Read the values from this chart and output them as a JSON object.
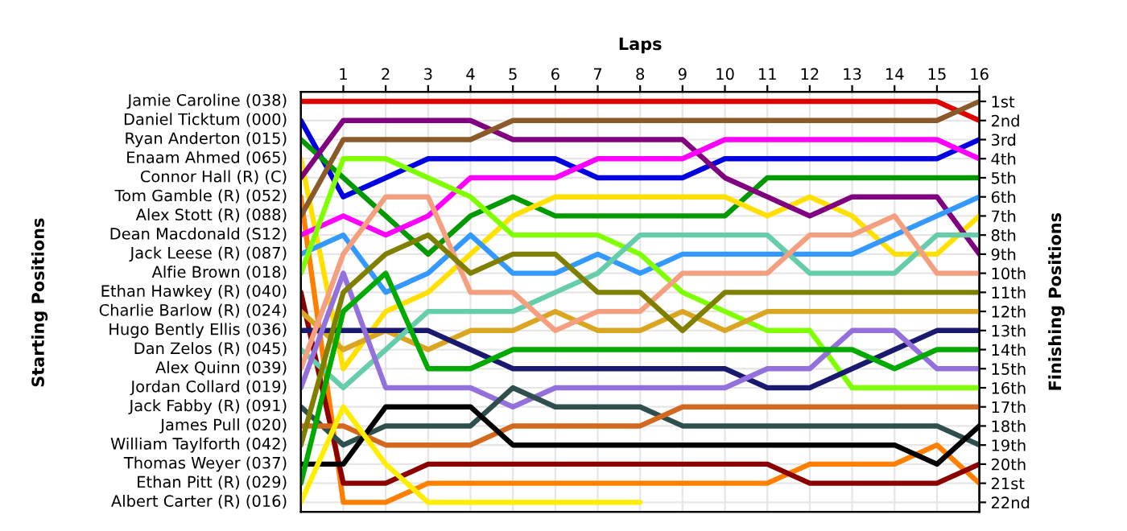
{
  "chart_data": {
    "type": "line",
    "xlabel": "Laps",
    "annotations": [
      "Starting Positions"
    ],
    "y2label": "Finishing Positions",
    "x": [
      0,
      1,
      2,
      3,
      4,
      5,
      6,
      7,
      8,
      9,
      10,
      11,
      12,
      13,
      14,
      15,
      16
    ],
    "xlim": [
      0,
      16
    ],
    "xticks": [
      1,
      2,
      3,
      4,
      5,
      6,
      7,
      8,
      9,
      10,
      11,
      12,
      13,
      14,
      15,
      16
    ],
    "y2lim": [
      22.5,
      0.5
    ],
    "y2ticks": [
      {
        "value": 1,
        "label": "1st"
      },
      {
        "value": 2,
        "label": "2nd"
      },
      {
        "value": 3,
        "label": "3rd"
      },
      {
        "value": 4,
        "label": "4th"
      },
      {
        "value": 5,
        "label": "5th"
      },
      {
        "value": 6,
        "label": "6th"
      },
      {
        "value": 7,
        "label": "7th"
      },
      {
        "value": 8,
        "label": "8th"
      },
      {
        "value": 9,
        "label": "9th"
      },
      {
        "value": 10,
        "label": "10th"
      },
      {
        "value": 11,
        "label": "11th"
      },
      {
        "value": 12,
        "label": "12th"
      },
      {
        "value": 13,
        "label": "13th"
      },
      {
        "value": 14,
        "label": "14th"
      },
      {
        "value": 15,
        "label": "15th"
      },
      {
        "value": 16,
        "label": "16th"
      },
      {
        "value": 17,
        "label": "17th"
      },
      {
        "value": 18,
        "label": "18th"
      },
      {
        "value": 19,
        "label": "19th"
      },
      {
        "value": 20,
        "label": "20th"
      },
      {
        "value": 21,
        "label": "21st"
      },
      {
        "value": 22,
        "label": "22nd"
      }
    ],
    "grid": true,
    "line_style": "solid",
    "series": [
      {
        "name": "Jamie Caroline (038)",
        "axis": "y2",
        "color": "#e00000",
        "values": [
          1,
          1,
          1,
          1,
          1,
          1,
          1,
          1,
          1,
          1,
          1,
          1,
          1,
          1,
          1,
          1,
          2
        ]
      },
      {
        "name": "Daniel Ticktum (000)",
        "axis": "y2",
        "color": "#0000e0",
        "values": [
          2,
          6,
          5,
          4,
          4,
          4,
          4,
          5,
          5,
          5,
          4,
          4,
          4,
          4,
          4,
          4,
          3
        ]
      },
      {
        "name": "Ryan Anderton (015)",
        "axis": "y2",
        "color": "#009900",
        "values": [
          3,
          5,
          7,
          9,
          7,
          6,
          7,
          7,
          7,
          7,
          7,
          5,
          5,
          5,
          5,
          5,
          5
        ]
      },
      {
        "name": "Enaam Ahmed (065)",
        "axis": "y2",
        "color": "#ffe000",
        "values": [
          4,
          15,
          12,
          11,
          9,
          7,
          6,
          6,
          6,
          6,
          6,
          7,
          6,
          7,
          9,
          9,
          7
        ]
      },
      {
        "name": "Connor Hall (R) (C)",
        "axis": "y2",
        "color": "#800080",
        "values": [
          5,
          2,
          2,
          2,
          2,
          3,
          3,
          3,
          3,
          3,
          5,
          6,
          7,
          6,
          6,
          6,
          9
        ]
      },
      {
        "name": "Tom Gamble (R) (052)",
        "axis": "y2",
        "color": "#ff8000",
        "values": [
          6,
          22,
          22,
          21,
          21,
          21,
          21,
          21,
          21,
          21,
          21,
          21,
          20,
          20,
          20,
          19,
          21
        ]
      },
      {
        "name": "Alex Stott (R) (088)",
        "axis": "y2",
        "color": "#8b5a2b",
        "values": [
          7,
          3,
          3,
          3,
          3,
          2,
          2,
          2,
          2,
          2,
          2,
          2,
          2,
          2,
          2,
          2,
          1
        ]
      },
      {
        "name": "Dean Macdonald (S12)",
        "axis": "y2",
        "color": "#ff00ff",
        "values": [
          8,
          7,
          8,
          7,
          5,
          5,
          5,
          4,
          4,
          4,
          3,
          3,
          3,
          3,
          3,
          3,
          4
        ]
      },
      {
        "name": "Jack Leese (R) (087)",
        "axis": "y2",
        "color": "#3399ff",
        "values": [
          9,
          8,
          11,
          10,
          8,
          10,
          10,
          9,
          10,
          9,
          9,
          9,
          9,
          9,
          8,
          7,
          6
        ]
      },
      {
        "name": "Alfie Brown (018)",
        "axis": "y2",
        "color": "#80ff00",
        "values": [
          10,
          4,
          4,
          5,
          6,
          8,
          8,
          8,
          9,
          11,
          12,
          13,
          13,
          16,
          16,
          16,
          16
        ]
      },
      {
        "name": "Ethan Hawkey (R) (040)",
        "axis": "y2",
        "color": "#8b0000",
        "values": [
          11,
          21,
          21,
          20,
          20,
          20,
          20,
          20,
          20,
          20,
          20,
          20,
          21,
          21,
          21,
          21,
          20
        ]
      },
      {
        "name": "Charlie Barlow (R) (024)",
        "axis": "y2",
        "color": "#daa520",
        "values": [
          12,
          14,
          13,
          14,
          13,
          13,
          12,
          13,
          13,
          12,
          13,
          12,
          12,
          12,
          12,
          12,
          12
        ]
      },
      {
        "name": "Hugo Bently Ellis (036)",
        "axis": "y2",
        "color": "#191970",
        "values": [
          13,
          13,
          13,
          13,
          14,
          15,
          15,
          15,
          15,
          15,
          15,
          16,
          16,
          15,
          14,
          13,
          13
        ]
      },
      {
        "name": "Dan Zelos (R) (045)",
        "axis": "y2",
        "color": "#66cdaa",
        "values": [
          14,
          16,
          14,
          12,
          12,
          12,
          11,
          10,
          8,
          8,
          8,
          8,
          10,
          10,
          10,
          8,
          8
        ]
      },
      {
        "name": "Alex Quinn (039)",
        "axis": "y2",
        "color": "#f4a080",
        "values": [
          15,
          9,
          6,
          6,
          11,
          11,
          13,
          12,
          12,
          10,
          10,
          10,
          8,
          8,
          7,
          10,
          10
        ]
      },
      {
        "name": "Jordan Collard (019)",
        "axis": "y2",
        "color": "#9370db",
        "values": [
          16,
          10,
          16,
          16,
          16,
          17,
          16,
          16,
          16,
          16,
          16,
          15,
          15,
          13,
          13,
          15,
          15
        ]
      },
      {
        "name": "Jack Fabby (R) (091)",
        "axis": "y2",
        "color": "#2f4f4f",
        "values": [
          17,
          19,
          18,
          18,
          18,
          16,
          17,
          17,
          17,
          18,
          18,
          18,
          18,
          18,
          18,
          18,
          19
        ]
      },
      {
        "name": "James Pull (020)",
        "axis": "y2",
        "color": "#d2691e",
        "values": [
          18,
          18,
          19,
          19,
          19,
          18,
          18,
          18,
          18,
          17,
          17,
          17,
          17,
          17,
          17,
          17,
          17
        ]
      },
      {
        "name": "William Taylforth (042)",
        "axis": "y2",
        "color": "#808000",
        "values": [
          19,
          11,
          9,
          8,
          10,
          9,
          9,
          11,
          11,
          13,
          11,
          11,
          11,
          11,
          11,
          11,
          11
        ]
      },
      {
        "name": "Thomas Weyer (037)",
        "axis": "y2",
        "color": "#000000",
        "values": [
          20,
          20,
          17,
          17,
          17,
          19,
          19,
          19,
          19,
          19,
          19,
          19,
          19,
          19,
          19,
          20,
          18
        ]
      },
      {
        "name": "Ethan Pitt (R) (029)",
        "axis": "y2",
        "color": "#00aa00",
        "values": [
          21,
          12,
          10,
          15,
          15,
          14,
          14,
          14,
          14,
          14,
          14,
          14,
          14,
          14,
          15,
          14,
          14
        ]
      },
      {
        "name": "Albert Carter (R) (016)",
        "axis": "y2",
        "color": "#ffee00",
        "values": [
          22,
          17,
          20,
          22,
          22,
          22,
          22,
          22,
          22,
          null,
          null,
          null,
          null,
          null,
          null,
          null,
          null
        ]
      }
    ]
  }
}
